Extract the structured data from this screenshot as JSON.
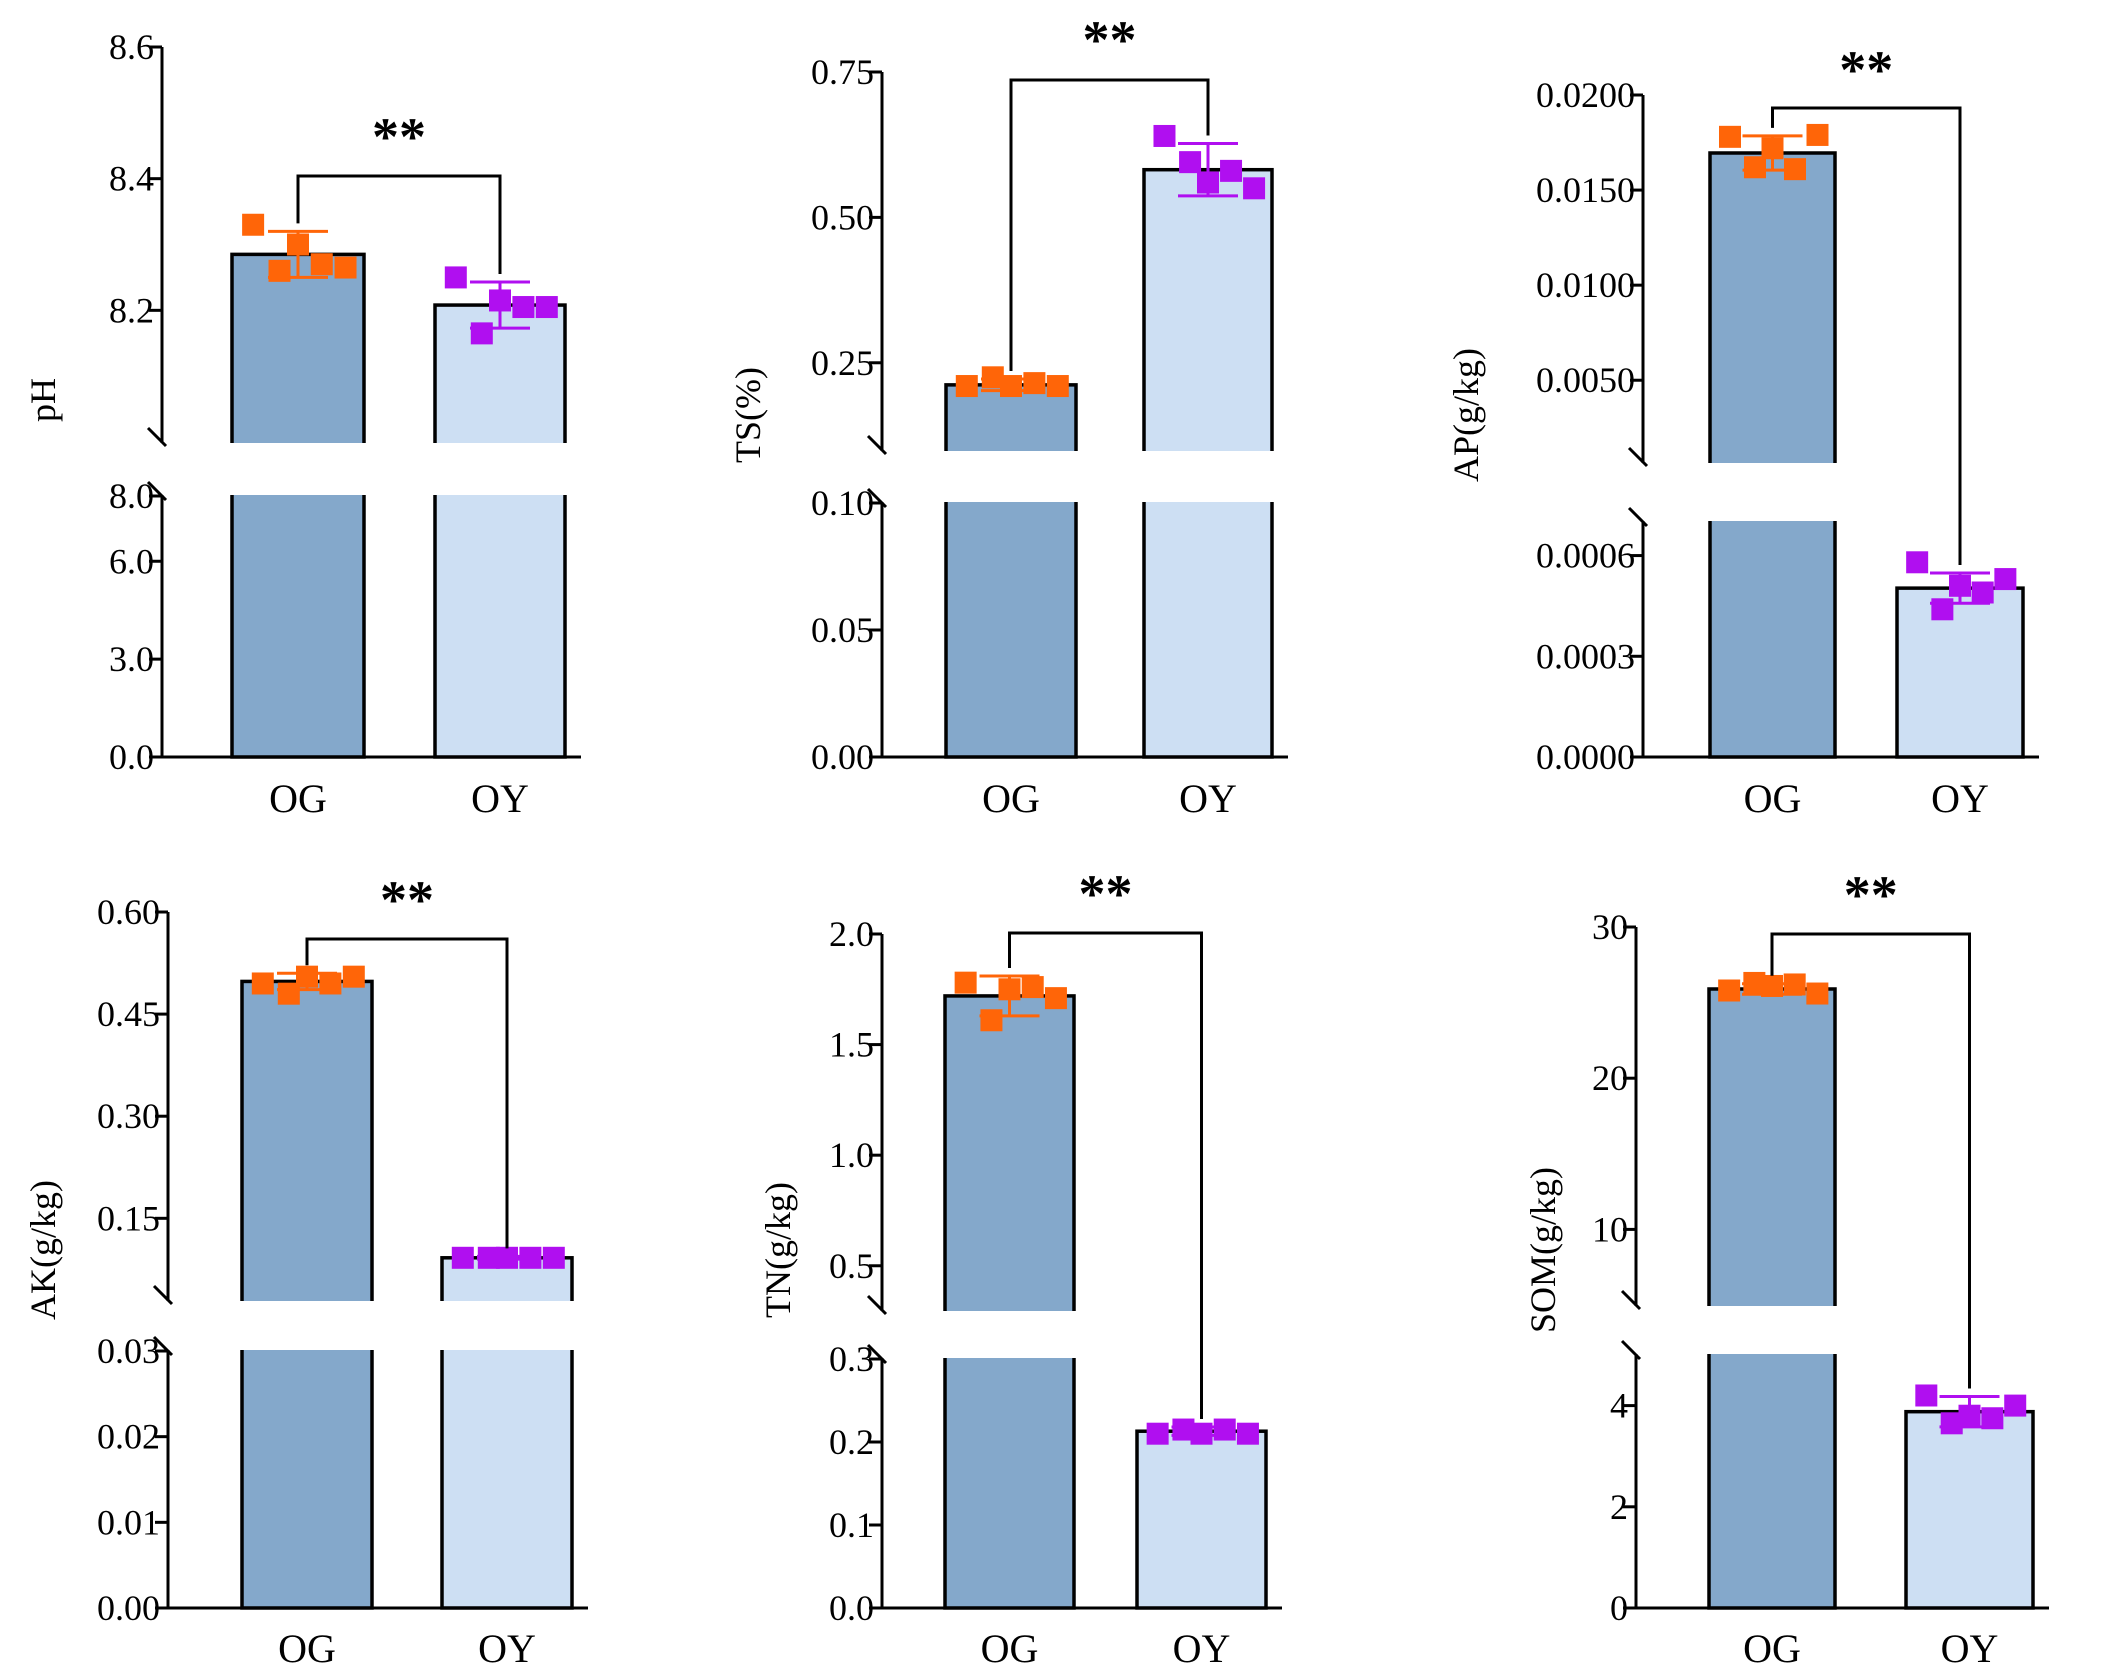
{
  "chart_data": [
    {
      "type": "bar",
      "ylabel": "pH",
      "categories": [
        "OG",
        "OY"
      ],
      "values": [
        8.285,
        8.208
      ],
      "errors": [
        0.035,
        0.035
      ],
      "points": [
        [
          8.33,
          8.26,
          8.3,
          8.27,
          8.265
        ],
        [
          8.25,
          8.165,
          8.215,
          8.205,
          8.205
        ]
      ],
      "segments": [
        {
          "range": [
            0,
            8
          ],
          "ticks": [
            0,
            3,
            6
          ],
          "tick_labels": [
            "0.0",
            "3.0",
            "6.0"
          ]
        },
        {
          "range": [
            8.0,
            8.6
          ],
          "ticks": [
            8.0,
            8.2,
            8.4,
            8.6
          ],
          "tick_labels": [
            "8.0",
            "8.2",
            "8.4",
            "8.6"
          ]
        }
      ],
      "significance": "**"
    },
    {
      "type": "bar",
      "ylabel": "TS(%)",
      "categories": [
        "OG",
        "OY"
      ],
      "values": [
        0.212,
        0.582
      ],
      "errors": [
        0.01,
        0.045
      ],
      "points": [
        [
          0.21,
          0.225,
          0.21,
          0.215,
          0.21
        ],
        [
          0.64,
          0.595,
          0.56,
          0.58,
          0.55
        ]
      ],
      "segments": [
        {
          "range": [
            0,
            0.1
          ],
          "ticks": [
            0,
            0.05,
            0.1
          ],
          "tick_labels": [
            "0.00",
            "0.05",
            "0.10"
          ]
        },
        {
          "range": [
            0.1,
            0.75
          ],
          "ticks": [
            0.25,
            0.5,
            0.75
          ],
          "tick_labels": [
            "0.25",
            "0.50",
            "0.75"
          ]
        }
      ],
      "significance": "**"
    },
    {
      "type": "bar",
      "ylabel": "AP(g/kg)",
      "categories": [
        "OG",
        "OY"
      ],
      "values": [
        0.01695,
        0.000503
      ],
      "errors": [
        0.0009,
        4.5e-05
      ],
      "points": [
        [
          0.0178,
          0.0162,
          0.0172,
          0.0161,
          0.0179
        ],
        [
          0.00058,
          0.00044,
          0.00051,
          0.00049,
          0.00053
        ]
      ],
      "segments": [
        {
          "range": [
            0,
            0.0007
          ],
          "ticks": [
            0,
            0.0003,
            0.0006
          ],
          "tick_labels": [
            "0.0000",
            "0.0003",
            "0.0006"
          ]
        },
        {
          "range": [
            0.0007,
            0.02
          ],
          "ticks": [
            0.005,
            0.01,
            0.015,
            0.02
          ],
          "tick_labels": [
            "0.0050",
            "0.0100",
            "0.0150",
            "0.0200"
          ]
        }
      ],
      "significance": "**"
    },
    {
      "type": "bar",
      "ylabel": "AK(g/kg)",
      "categories": [
        "OG",
        "OY"
      ],
      "values": [
        0.498,
        0.092
      ],
      "errors": [
        0.012,
        0.002
      ],
      "points": [
        [
          0.495,
          0.48,
          0.505,
          0.495,
          0.505
        ],
        [
          0.092,
          0.092,
          0.092,
          0.092,
          0.092
        ]
      ],
      "segments": [
        {
          "range": [
            0,
            0.03
          ],
          "ticks": [
            0,
            0.01,
            0.02,
            0.03
          ],
          "tick_labels": [
            "0.00",
            "0.01",
            "0.02",
            "0.03"
          ]
        },
        {
          "range": [
            0.03,
            0.6
          ],
          "ticks": [
            0.15,
            0.3,
            0.45,
            0.6
          ],
          "tick_labels": [
            "0.15",
            "0.30",
            "0.45",
            "0.60"
          ]
        }
      ],
      "significance": "**"
    },
    {
      "type": "bar",
      "ylabel": "TN(g/kg)",
      "categories": [
        "OG",
        "OY"
      ],
      "values": [
        1.72,
        0.213
      ],
      "errors": [
        0.09,
        0.005
      ],
      "points": [
        [
          1.78,
          1.61,
          1.75,
          1.76,
          1.71
        ],
        [
          0.21,
          0.215,
          0.21,
          0.215,
          0.21
        ]
      ],
      "segments": [
        {
          "range": [
            0,
            0.3
          ],
          "ticks": [
            0,
            0.1,
            0.2,
            0.3
          ],
          "tick_labels": [
            "0.0",
            "0.1",
            "0.2",
            "0.3"
          ]
        },
        {
          "range": [
            0.3,
            2.0
          ],
          "ticks": [
            0.5,
            1.0,
            1.5,
            2.0
          ],
          "tick_labels": [
            "0.5",
            "1.0",
            "1.5",
            "2.0"
          ]
        }
      ],
      "significance": "**"
    },
    {
      "type": "bar",
      "ylabel": "SOM(g/kg)",
      "categories": [
        "OG",
        "OY"
      ],
      "values": [
        25.9,
        3.88
      ],
      "errors": [
        0.35,
        0.3
      ],
      "points": [
        [
          25.8,
          26.3,
          26.1,
          26.2,
          25.6
        ],
        [
          4.2,
          3.65,
          3.8,
          3.75,
          4.0
        ]
      ],
      "segments": [
        {
          "range": [
            0,
            5
          ],
          "ticks": [
            0,
            2,
            4
          ],
          "tick_labels": [
            "0",
            "2",
            "4"
          ]
        },
        {
          "range": [
            5,
            30
          ],
          "ticks": [
            10,
            20,
            30
          ],
          "tick_labels": [
            "10",
            "20",
            "30"
          ]
        }
      ],
      "significance": "**"
    }
  ],
  "colors": {
    "og_bar": "#84a8cb",
    "oy_bar": "#cddff3",
    "og_points": "#ff6508",
    "oy_points": "#b00ff0",
    "axis": "#000000"
  }
}
